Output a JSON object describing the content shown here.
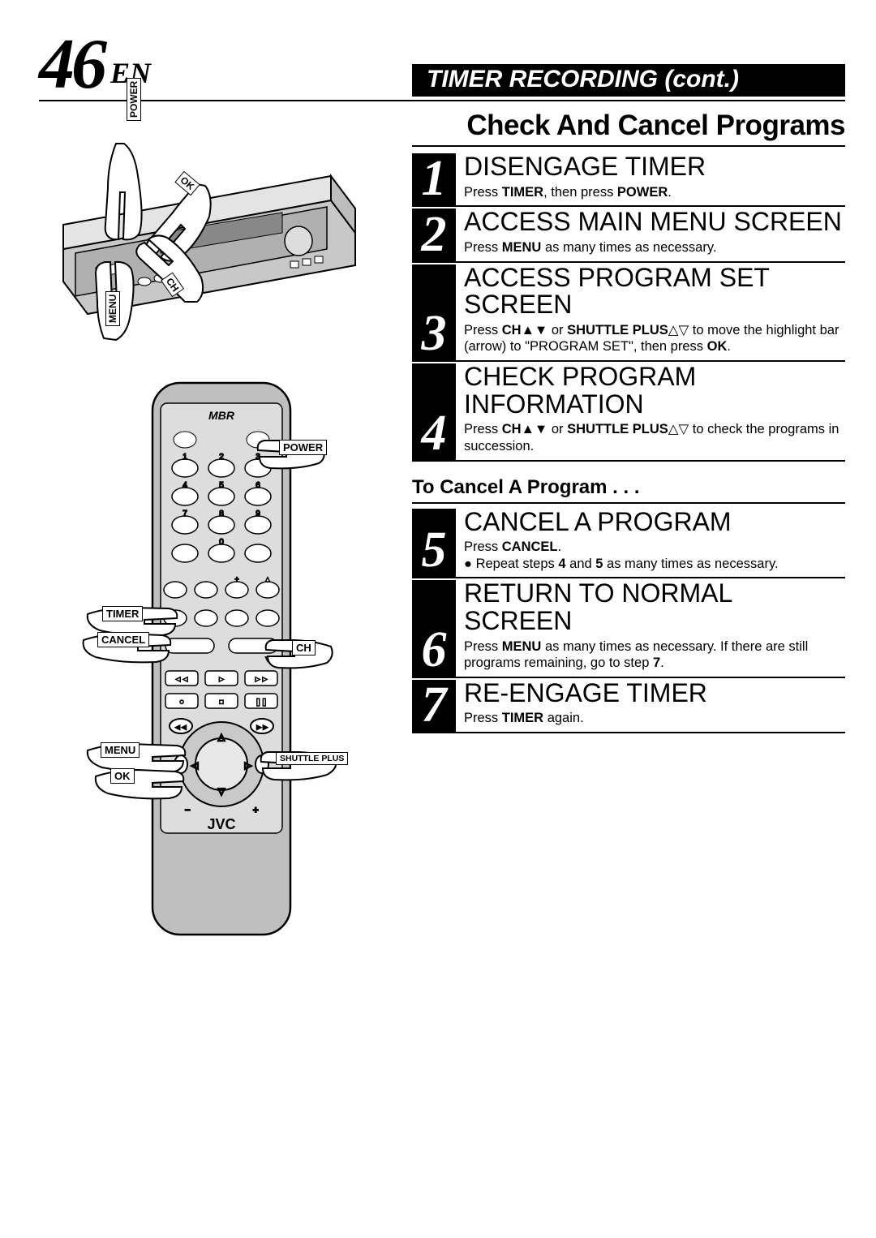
{
  "header": {
    "page_number": "46",
    "lang": "EN",
    "bar_title": "TIMER RECORDING (cont.)"
  },
  "section_title": "Check And Cancel Programs",
  "steps": [
    {
      "num": "1",
      "title": "DISENGAGE TIMER",
      "desc_html": "Press <b>TIMER</b>, then press <b>POWER</b>."
    },
    {
      "num": "2",
      "title": "ACCESS MAIN MENU SCREEN",
      "desc_html": "Press <b>MENU</b> as many times as necessary."
    },
    {
      "num": "3",
      "title": "ACCESS PROGRAM SET SCREEN",
      "desc_html": "Press <b>CH▲▼</b> or <b>SHUTTLE PLUS</b>△▽ to move the highlight bar (arrow) to \"PROGRAM SET\", then press <b>OK</b>."
    },
    {
      "num": "4",
      "title": "CHECK PROGRAM INFORMATION",
      "desc_html": "Press <b>CH▲▼</b> or <b>SHUTTLE PLUS</b>△▽ to check the programs in succession."
    }
  ],
  "sub_heading": "To Cancel A Program . . .",
  "steps2": [
    {
      "num": "5",
      "title": "CANCEL A PROGRAM",
      "desc_html": "Press <b>CANCEL</b>.<br><span class=\"bullet\">Repeat steps <b>4</b> and <b>5</b> as many times as necessary.</span>"
    },
    {
      "num": "6",
      "title": "RETURN TO NORMAL SCREEN",
      "desc_html": "Press <b>MENU</b> as many times as necessary. If there are still programs remaining, go to step <b>7</b>."
    },
    {
      "num": "7",
      "title": "RE-ENGAGE TIMER",
      "desc_html": "Press <b>TIMER</b> again."
    }
  ],
  "vcr_labels": {
    "power": "POWER",
    "ok": "OK",
    "ch": "CH",
    "menu": "MENU"
  },
  "remote_labels": {
    "power": "POWER",
    "timer": "TIMER",
    "cancel": "CANCEL",
    "ch": "CH",
    "menu": "MENU",
    "ok": "OK",
    "shuttle": "SHUTTLE PLUS"
  },
  "remote_brand_top": "MBR",
  "remote_brand_bottom": "JVC",
  "colors": {
    "black": "#000000",
    "white": "#ffffff",
    "grey": "#b9b9b9",
    "lightgrey": "#d8d8d8"
  }
}
